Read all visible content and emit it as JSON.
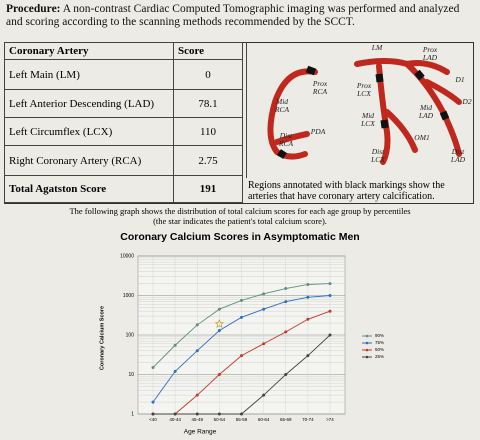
{
  "procedure": {
    "label": "Procedure:",
    "text": "A non-contrast Cardiac Computed Tomographic imaging was performed and analyzed and scoring according to the scanning methods recommended by the SCCT."
  },
  "table": {
    "headers": [
      "Coronary Artery",
      "Score"
    ],
    "rows": [
      [
        "Left Main (LM)",
        0
      ],
      [
        "Left Anterior Descending (LAD)",
        78.1
      ],
      [
        "Left Circumflex (LCX)",
        110
      ],
      [
        "Right Coronary Artery (RCA)",
        2.75
      ]
    ],
    "total": [
      "Total Agatston Score",
      191
    ]
  },
  "diagram": {
    "labels": [
      "LM",
      "Prox LAD",
      "D1",
      "D2",
      "Prox RCA",
      "Prox LCX",
      "Mid RCA",
      "Mid LCX",
      "Mid LAD",
      "OM1",
      "PDA",
      "Dist RCA",
      "Dist LCX",
      "Dist LAD"
    ]
  },
  "note": "Regions annotated with black markings show the arteries that have coronary artery calcification.",
  "graph_intro": "The following graph shows the distribution of total calcium scores for each age group by percentiles",
  "graph_note": "(the star indicates the patient's total calcium score).",
  "chart_data": {
    "type": "line",
    "title": "Coronary Calcium Scores in Asymptomatic Men",
    "x_label": "Age Range",
    "y_label": "Coronary Calcium Score",
    "categories": [
      "<40",
      "40-44",
      "45-49",
      "50-54",
      "55-59",
      "60-64",
      "65-69",
      "70-74",
      ">74"
    ],
    "log_scale": true,
    "ylim": [
      1,
      10000
    ],
    "yticks": [
      1,
      10,
      100,
      1000,
      10000
    ],
    "grid": true,
    "series": [
      {
        "name": "90%",
        "color": "#5f8f80",
        "values": [
          15,
          55,
          180,
          450,
          750,
          1100,
          1500,
          1900,
          2000
        ]
      },
      {
        "name": "75%",
        "color": "#2f6fbf",
        "values": [
          2,
          12,
          40,
          130,
          280,
          450,
          700,
          900,
          1000
        ]
      },
      {
        "name": "50%",
        "color": "#c0392b",
        "values": [
          1,
          1,
          3,
          10,
          30,
          60,
          120,
          250,
          400
        ]
      },
      {
        "name": "25%",
        "color": "#444444",
        "values": [
          1,
          1,
          1,
          1,
          1,
          3,
          10,
          30,
          100
        ]
      }
    ],
    "star": {
      "category": "50-54",
      "value": 191,
      "color": "#c9a33a"
    },
    "legend": "right"
  }
}
